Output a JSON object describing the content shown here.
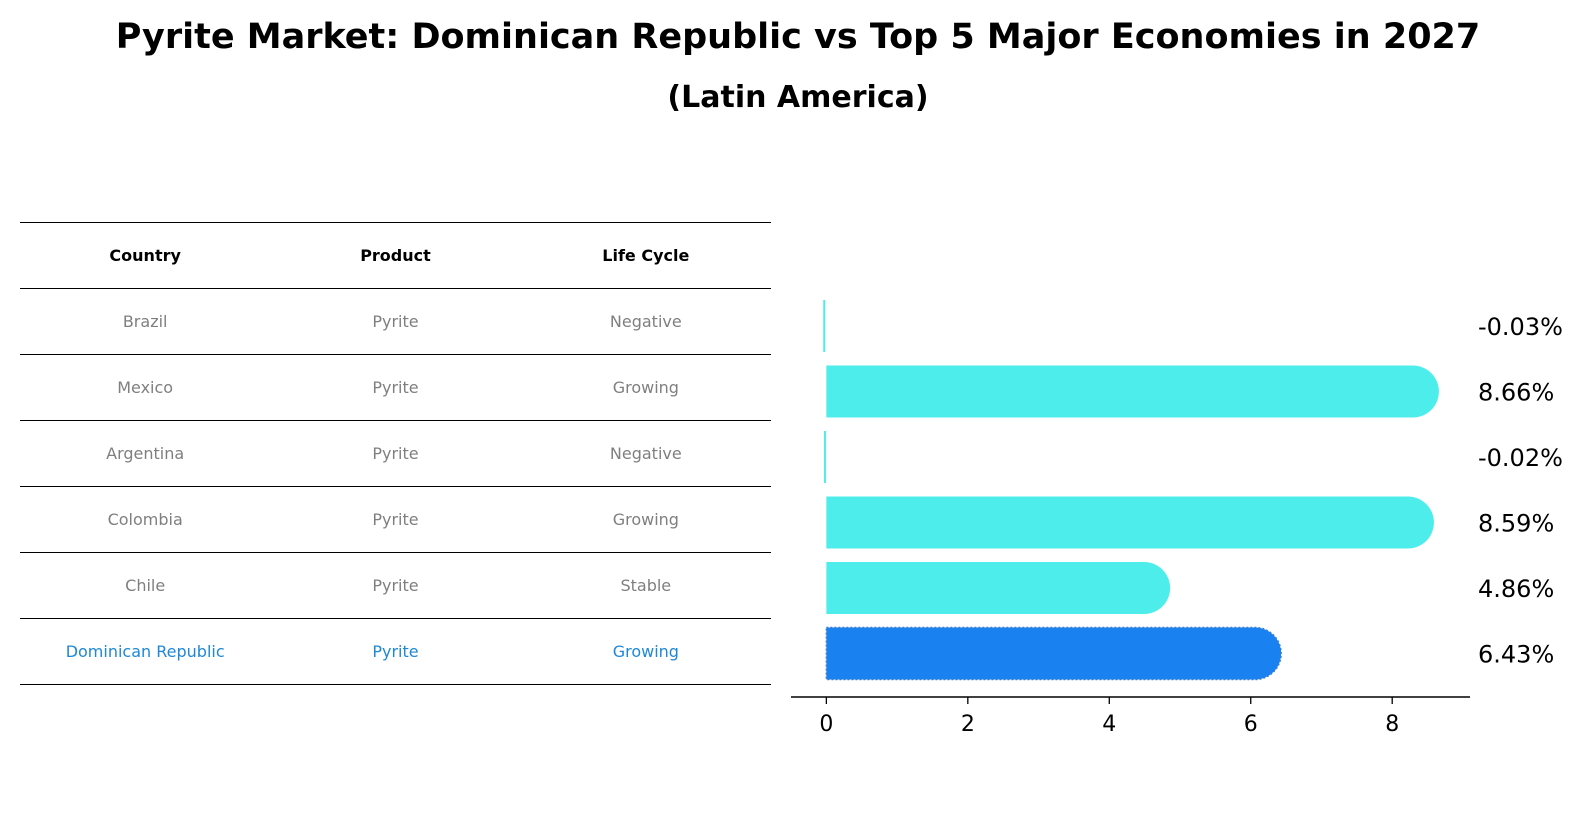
{
  "title": "Pyrite Market: Dominican Republic vs Top 5 Major Economies in 2027",
  "subtitle": "(Latin America)",
  "table": {
    "headers": [
      "Country",
      "Product",
      "Life Cycle"
    ],
    "rows": [
      [
        "Brazil",
        "Pyrite",
        "Negative"
      ],
      [
        "Mexico",
        "Pyrite",
        "Growing"
      ],
      [
        "Argentina",
        "Pyrite",
        "Negative"
      ],
      [
        "Colombia",
        "Pyrite",
        "Growing"
      ],
      [
        "Chile",
        "Pyrite",
        "Stable"
      ],
      [
        "Dominican Republic",
        "Pyrite",
        "Growing"
      ]
    ]
  },
  "colors": {
    "bar": "#4dedeb",
    "highlight_bar": "#1a82f0",
    "highlight_text": "#1e88d8",
    "muted_text": "#7f7f7f"
  },
  "chart_data": {
    "type": "bar",
    "orientation": "horizontal",
    "categories": [
      "Brazil",
      "Mexico",
      "Argentina",
      "Colombia",
      "Chile",
      "Dominican Republic"
    ],
    "values": [
      -0.03,
      8.66,
      -0.02,
      8.59,
      4.86,
      6.43
    ],
    "labels": [
      "-0.03%",
      "8.66%",
      "-0.02%",
      "8.59%",
      "4.86%",
      "6.43%"
    ],
    "highlight": "Dominican Republic",
    "xlim": [
      -0.5,
      9.1
    ],
    "xticks": [
      0,
      2,
      4,
      6,
      8
    ],
    "xlabel": "",
    "ylabel": "",
    "grid": false
  }
}
